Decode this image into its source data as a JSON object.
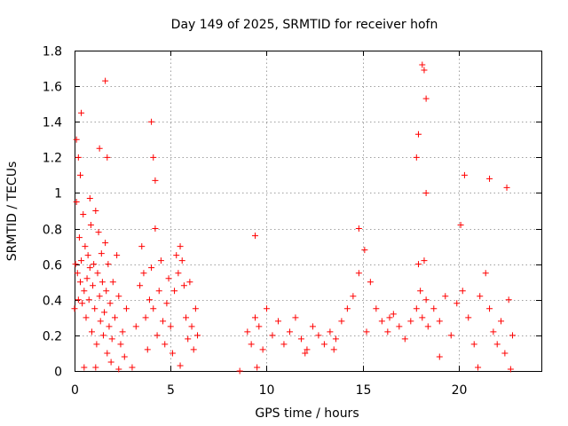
{
  "chart_data": {
    "type": "scatter",
    "title": "Day 149 of 2025, SRMTID for receiver hofn",
    "xlabel": "GPS time / hours",
    "ylabel": "SRMTID / TECUs",
    "xlim": [
      0,
      24.3
    ],
    "ylim": [
      0,
      1.8
    ],
    "xticks": [
      0,
      5,
      10,
      15,
      20
    ],
    "xtick_labels": [
      "0",
      "5",
      "10",
      "15",
      "20"
    ],
    "yticks": [
      0,
      0.2,
      0.4,
      0.6,
      0.8,
      1,
      1.2,
      1.4,
      1.6,
      1.8
    ],
    "ytick_labels": [
      "0",
      "0.2",
      "0.4",
      "0.6",
      "0.8",
      "1",
      "1.2",
      "1.4",
      "1.6",
      "1.8"
    ],
    "grid": true,
    "marker": "+",
    "color": "#ff0000",
    "series": [
      {
        "name": "SRMTID",
        "x": [
          0.0,
          0.05,
          0.1,
          0.15,
          0.2,
          0.25,
          0.3,
          0.35,
          0.4,
          0.45,
          0.5,
          0.55,
          0.6,
          0.65,
          0.7,
          0.75,
          0.8,
          0.85,
          0.9,
          0.95,
          1.0,
          1.05,
          1.1,
          1.15,
          1.2,
          1.25,
          1.3,
          1.35,
          1.4,
          1.45,
          1.5,
          1.55,
          1.6,
          1.65,
          1.7,
          1.75,
          1.8,
          1.85,
          1.9,
          1.95,
          2.0,
          2.1,
          2.2,
          2.3,
          2.4,
          2.5,
          2.6,
          2.7,
          3.0,
          3.2,
          3.4,
          3.5,
          3.6,
          3.7,
          3.8,
          3.9,
          4.0,
          4.1,
          4.2,
          4.3,
          4.4,
          4.5,
          4.6,
          4.7,
          4.8,
          4.9,
          5.0,
          5.1,
          5.2,
          5.3,
          5.4,
          5.5,
          5.6,
          5.7,
          5.8,
          5.9,
          6.0,
          6.1,
          6.2,
          6.3,
          6.4,
          0.1,
          0.2,
          0.3,
          0.35,
          0.8,
          1.3,
          1.6,
          1.7,
          4.0,
          4.1,
          4.2,
          8.6,
          9.0,
          9.2,
          9.4,
          9.6,
          9.8,
          10.0,
          10.3,
          10.6,
          10.9,
          11.2,
          11.5,
          11.8,
          12.1,
          12.4,
          12.7,
          13.0,
          13.3,
          13.6,
          13.9,
          14.2,
          14.5,
          14.8,
          15.1,
          15.4,
          15.7,
          16.0,
          16.3,
          16.6,
          16.9,
          17.2,
          17.5,
          17.8,
          17.9,
          18.0,
          18.1,
          18.2,
          18.3,
          18.4,
          18.7,
          19.0,
          19.3,
          19.6,
          19.9,
          20.2,
          20.5,
          20.8,
          21.1,
          21.4,
          21.6,
          21.8,
          22.0,
          22.2,
          22.4,
          22.6,
          22.8,
          9.4,
          17.9,
          18.1,
          18.2,
          18.3,
          20.3,
          21.6,
          22.5,
          14.8,
          17.8,
          18.3,
          20.1,
          0.5,
          1.1,
          2.3,
          5.5,
          9.5,
          12.0,
          13.5,
          15.2,
          16.4,
          19.0,
          21.0,
          22.7
        ],
        "y": [
          0.35,
          0.6,
          0.95,
          0.55,
          0.4,
          0.75,
          0.5,
          0.62,
          0.38,
          0.88,
          0.45,
          0.7,
          0.3,
          0.52,
          0.65,
          0.4,
          0.58,
          0.82,
          0.22,
          0.48,
          0.6,
          0.35,
          0.9,
          0.15,
          0.55,
          0.78,
          0.42,
          0.28,
          0.66,
          0.5,
          0.2,
          0.33,
          0.72,
          0.45,
          0.1,
          0.6,
          0.25,
          0.38,
          0.05,
          0.18,
          0.5,
          0.3,
          0.65,
          0.42,
          0.15,
          0.22,
          0.08,
          0.35,
          0.02,
          0.25,
          0.48,
          0.7,
          0.55,
          0.3,
          0.12,
          0.4,
          0.58,
          0.35,
          0.8,
          0.2,
          0.45,
          0.62,
          0.28,
          0.15,
          0.38,
          0.52,
          0.25,
          0.1,
          0.45,
          0.65,
          0.55,
          0.7,
          0.62,
          0.48,
          0.3,
          0.18,
          0.5,
          0.25,
          0.12,
          0.35,
          0.2,
          1.3,
          1.2,
          1.1,
          1.45,
          0.97,
          1.25,
          1.63,
          1.2,
          1.4,
          1.2,
          1.07,
          0.0,
          0.22,
          0.15,
          0.3,
          0.25,
          0.12,
          0.35,
          0.2,
          0.28,
          0.15,
          0.22,
          0.3,
          0.18,
          0.12,
          0.25,
          0.2,
          0.15,
          0.22,
          0.18,
          0.28,
          0.35,
          0.42,
          0.55,
          0.68,
          0.5,
          0.35,
          0.28,
          0.22,
          0.32,
          0.25,
          0.18,
          0.28,
          0.35,
          0.6,
          0.45,
          0.3,
          0.62,
          0.4,
          0.25,
          0.35,
          0.28,
          0.42,
          0.2,
          0.38,
          0.45,
          0.3,
          0.15,
          0.42,
          0.55,
          0.35,
          0.22,
          0.15,
          0.28,
          0.1,
          0.4,
          0.2,
          0.76,
          1.33,
          1.72,
          1.69,
          1.53,
          1.1,
          1.08,
          1.03,
          0.8,
          1.2,
          1.0,
          0.82,
          0.02,
          0.02,
          0.01,
          0.03,
          0.02,
          0.1,
          0.12,
          0.22,
          0.3,
          0.08,
          0.02,
          0.01
        ]
      }
    ]
  }
}
